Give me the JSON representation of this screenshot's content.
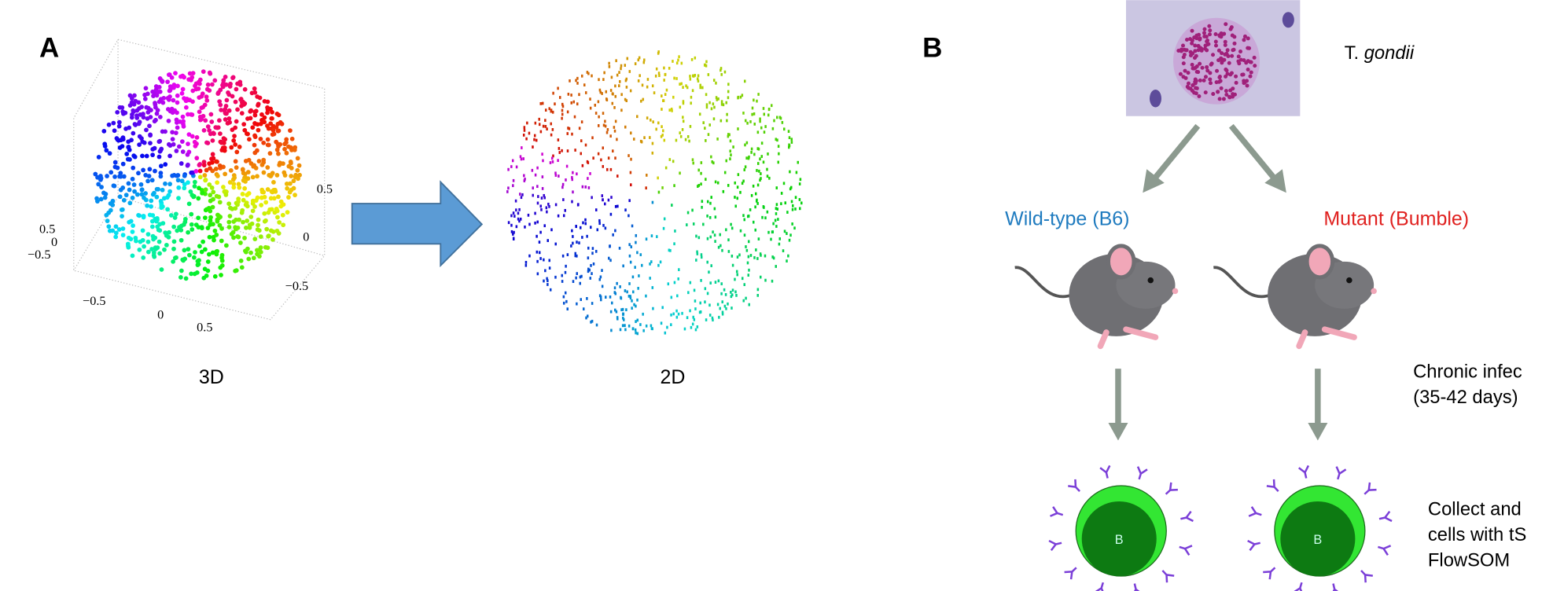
{
  "panel_a": {
    "label": "A",
    "left_caption": "3D",
    "right_caption": "2D",
    "axis_labels": {
      "z": [
        "0.5",
        "0",
        "−0.5"
      ],
      "x": [
        "−0.5",
        "0",
        "0.5"
      ],
      "y": [
        "0.5",
        "0",
        "−0.5"
      ]
    }
  },
  "panel_b": {
    "label": "B",
    "organism": {
      "genus": "T.",
      "species": "gondii"
    },
    "groups": [
      "Wild-type (B6)",
      "Mutant (Bumble)"
    ],
    "cell_label": "B",
    "steps": [
      [
        "Chronic infec",
        "(35-42 days)"
      ],
      [
        "Collect and",
        "cells with tS",
        "FlowSOM"
      ]
    ]
  }
}
